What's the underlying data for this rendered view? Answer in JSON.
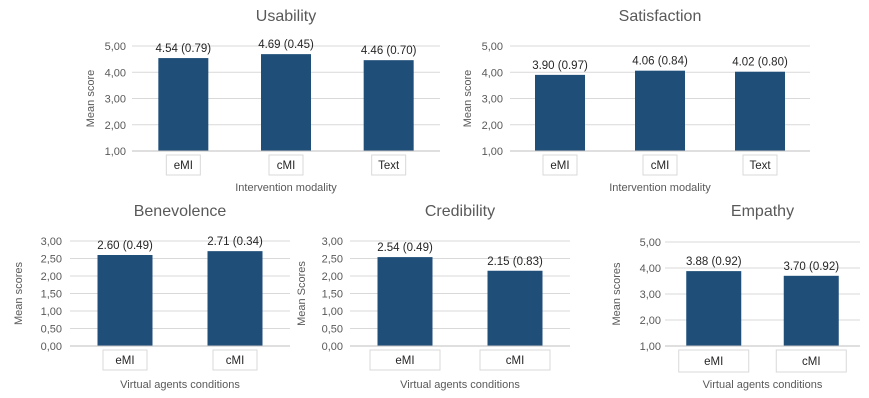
{
  "chart_data": [
    {
      "type": "bar",
      "title": "Usability",
      "xlabel": "Intervention modality",
      "ylabel": "Mean score",
      "categories": [
        "eMI",
        "cMI",
        "Text"
      ],
      "values": [
        4.54,
        4.69,
        4.46
      ],
      "data_labels": [
        "4.54  (0.79)",
        "4.69 (0.45)",
        "4.46 (0.70)"
      ],
      "yticks": [
        "1,00",
        "2,00",
        "3,00",
        "4,00",
        "5,00"
      ],
      "ylim": [
        1,
        5
      ],
      "grid": true,
      "bar_color": "#1f4e79"
    },
    {
      "type": "bar",
      "title": "Satisfaction",
      "xlabel": "Intervention modality",
      "ylabel": "Mean score",
      "categories": [
        "eMI",
        "cMI",
        "Text"
      ],
      "values": [
        3.9,
        4.06,
        4.02
      ],
      "data_labels": [
        "3.90 (0.97)",
        "4.06 (0.84)",
        "4.02 (0.80)"
      ],
      "yticks": [
        "1,00",
        "2,00",
        "3,00",
        "4,00",
        "5,00"
      ],
      "ylim": [
        1,
        5
      ],
      "grid": true,
      "bar_color": "#1f4e79"
    },
    {
      "type": "bar",
      "title": "Benevolence",
      "xlabel": "Virtual agents conditions",
      "ylabel": "Mean scores",
      "categories": [
        "eMI",
        "cMI"
      ],
      "values": [
        2.6,
        2.71
      ],
      "data_labels": [
        "2.60 (0.49)",
        "2.71 (0.34)"
      ],
      "yticks": [
        "0,00",
        "0,50",
        "1,00",
        "1,50",
        "2,00",
        "2,50",
        "3,00"
      ],
      "ylim": [
        0,
        3
      ],
      "grid": true,
      "bar_color": "#1f4e79"
    },
    {
      "type": "bar",
      "title": "Credibility",
      "xlabel": "Virtual agents conditions",
      "ylabel": "Mean Scores",
      "categories": [
        "eMI",
        "cMI"
      ],
      "values": [
        2.54,
        2.15
      ],
      "data_labels": [
        "2.54 (0.49)",
        "2.15 (0.83)"
      ],
      "yticks": [
        "0,00",
        "0,50",
        "1,00",
        "1,50",
        "2,00",
        "2,50",
        "3,00"
      ],
      "ylim": [
        0,
        3
      ],
      "grid": true,
      "bar_color": "#1f4e79"
    },
    {
      "type": "bar",
      "title": "Empathy",
      "xlabel": "Virtual agents conditions",
      "ylabel": "Mean scores",
      "categories": [
        "eMI",
        "cMI"
      ],
      "values": [
        3.88,
        3.7
      ],
      "data_labels": [
        "3.88  (0.92)",
        "3.70 (0.92)"
      ],
      "yticks": [
        "1,00",
        "2,00",
        "3,00",
        "4,00",
        "5,00"
      ],
      "ylim": [
        1,
        5
      ],
      "grid": true,
      "bar_color": "#1f4e79"
    }
  ]
}
